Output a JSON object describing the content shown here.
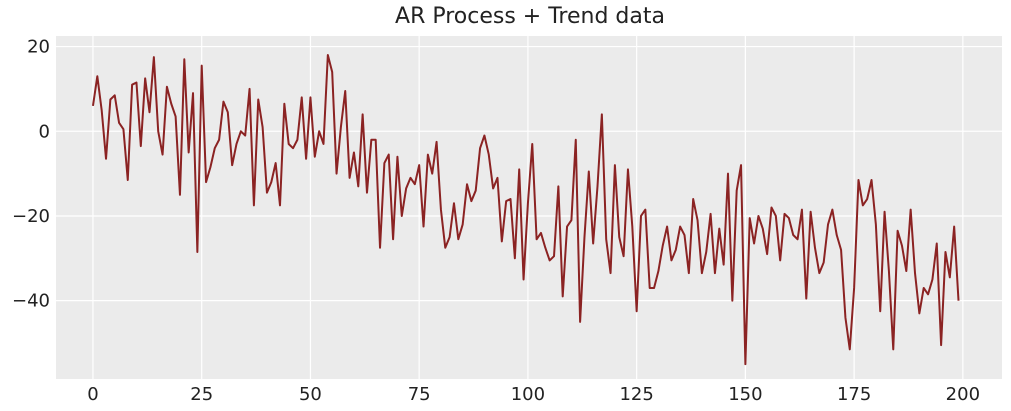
{
  "chart_data": {
    "type": "line",
    "title": "AR Process + Trend data",
    "xlabel": "",
    "ylabel": "",
    "xlim": [
      -8.5,
      209
    ],
    "ylim": [
      -58.5,
      22.5
    ],
    "xticks": [
      0,
      25,
      50,
      75,
      100,
      125,
      150,
      175,
      200
    ],
    "yticks": [
      20,
      0,
      -20,
      -40
    ],
    "grid": true,
    "legend": "none",
    "colors": {
      "line": "#8b2323",
      "plot_bg": "#ebebeb",
      "grid": "#ffffff"
    },
    "series": [
      {
        "x": [
          0,
          1,
          2,
          3,
          4,
          5,
          6,
          7,
          8,
          9,
          10,
          11,
          12,
          13,
          14,
          15,
          16,
          17,
          18,
          19,
          20,
          21,
          22,
          23,
          24,
          25,
          26,
          27,
          28,
          29,
          30,
          31,
          32,
          33,
          34,
          35,
          36,
          37,
          38,
          39,
          40,
          41,
          42,
          43,
          44,
          45,
          46,
          47,
          48,
          49,
          50,
          51,
          52,
          53,
          54,
          55,
          56,
          57,
          58,
          59,
          60,
          61,
          62,
          63,
          64,
          65,
          66,
          67,
          68,
          69,
          70,
          71,
          72,
          73,
          74,
          75,
          76,
          77,
          78,
          79,
          80,
          81,
          82,
          83,
          84,
          85,
          86,
          87,
          88,
          89,
          90,
          91,
          92,
          93,
          94,
          95,
          96,
          97,
          98,
          99,
          100,
          101,
          102,
          103,
          104,
          105,
          106,
          107,
          108,
          109,
          110,
          111,
          112,
          113,
          114,
          115,
          116,
          117,
          118,
          119,
          120,
          121,
          122,
          123,
          124,
          125,
          126,
          127,
          128,
          129,
          130,
          131,
          132,
          133,
          134,
          135,
          136,
          137,
          138,
          139,
          140,
          141,
          142,
          143,
          144,
          145,
          146,
          147,
          148,
          149,
          150,
          151,
          152,
          153,
          154,
          155,
          156,
          157,
          158,
          159,
          160,
          161,
          162,
          163,
          164,
          165,
          166,
          167,
          168,
          169,
          170,
          171,
          172,
          173,
          174,
          175,
          176,
          177,
          178,
          179,
          180,
          181,
          182,
          183,
          184,
          185,
          186,
          187,
          188,
          189,
          190,
          191,
          192,
          193,
          194,
          195,
          196,
          197,
          198,
          199
        ],
        "values": [
          6,
          13,
          5,
          -6.5,
          7.5,
          8.5,
          2,
          0.5,
          -11.5,
          11,
          11.5,
          -3.5,
          12.5,
          4.5,
          17.5,
          0,
          -5.5,
          10.5,
          6.5,
          3.5,
          -15,
          17,
          -5,
          9,
          -28.5,
          15.5,
          -12,
          -8.5,
          -4,
          -2,
          7,
          4.5,
          -8,
          -3,
          0,
          -1,
          10,
          -17.5,
          7.5,
          1,
          -14.5,
          -12,
          -7.5,
          -17.5,
          6.5,
          -3,
          -4,
          -2,
          8,
          -6.5,
          8,
          -6,
          0,
          -3,
          18,
          14,
          -10,
          1,
          9.5,
          -11,
          -5,
          -13,
          4,
          -14.5,
          -2,
          -2,
          -27.5,
          -7.5,
          -5.5,
          -25.5,
          -6,
          -20,
          -13.5,
          -11,
          -12.5,
          -8,
          -22.5,
          -5.5,
          -10,
          -2.5,
          -18.5,
          -27.5,
          -25,
          -17,
          -25.5,
          -22,
          -12.5,
          -16.5,
          -14,
          -4,
          -1,
          -5.5,
          -13.5,
          -11,
          -26,
          -16.5,
          -16,
          -30,
          -9,
          -35,
          -17,
          -3,
          -25.5,
          -24,
          -27.5,
          -30.5,
          -29.5,
          -13,
          -39,
          -22.5,
          -21,
          -2,
          -45,
          -25,
          -9.5,
          -26.5,
          -13,
          4,
          -25.5,
          -33.5,
          -8,
          -25,
          -29.5,
          -9,
          -22.5,
          -42.5,
          -20,
          -18.5,
          -37,
          -37,
          -33,
          -27,
          -22.5,
          -30.5,
          -28,
          -22.5,
          -24.5,
          -33.5,
          -16,
          -21,
          -33.5,
          -28.5,
          -19.5,
          -33.5,
          -23,
          -31.5,
          -10,
          -40,
          -14,
          -8,
          -55,
          -20.5,
          -26.5,
          -20,
          -23,
          -29,
          -18,
          -20,
          -30.5,
          -19.5,
          -20.5,
          -24.5,
          -25.5,
          -18.5,
          -39.5,
          -19,
          -27.5,
          -33.5,
          -31,
          -22,
          -18.5,
          -24.5,
          -28,
          -44,
          -51.5,
          -37,
          -11.5,
          -17.5,
          -16,
          -11.5,
          -22,
          -42.5,
          -19,
          -33,
          -51.5,
          -23.5,
          -27,
          -33,
          -18.5,
          -33.5,
          -43,
          -37,
          -38.5,
          -35,
          -26.5,
          -50.5,
          -28.5,
          -34.5,
          -22.5,
          -40
        ]
      }
    ]
  }
}
